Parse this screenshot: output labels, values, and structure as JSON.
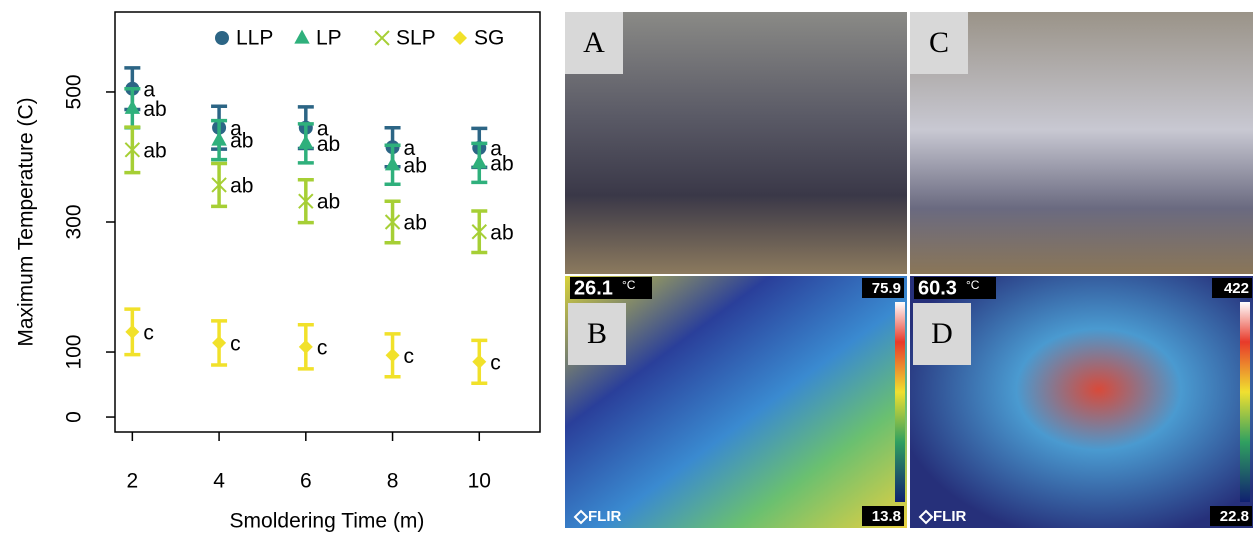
{
  "chart_data": {
    "type": "errorbar",
    "x_label": "Smoldering Time (m)",
    "y_label": "Maximum Temperature (C)",
    "x": [
      2,
      4,
      6,
      8,
      10
    ],
    "xlim": [
      1.6,
      11.4
    ],
    "xticks": [
      2,
      4,
      6,
      8,
      10
    ],
    "ylim": [
      -23,
      623
    ],
    "yticks": [
      0,
      100,
      300,
      500
    ],
    "legend": "top-right",
    "series": [
      {
        "name": "LLP",
        "color": "#2c6585",
        "marker": "circle",
        "values": [
          505,
          445,
          445,
          415,
          414
        ],
        "errors": [
          32,
          33,
          32,
          30,
          30
        ],
        "labels": [
          "a",
          "a",
          "a",
          "a",
          "a"
        ]
      },
      {
        "name": "LP",
        "color": "#2fb07c",
        "marker": "triangle",
        "values": [
          475,
          426,
          421,
          388,
          391
        ],
        "errors": [
          30,
          30,
          30,
          30,
          30
        ],
        "labels": [
          "ab",
          "ab",
          "ab",
          "ab",
          "ab"
        ]
      },
      {
        "name": "SLP",
        "color": "#a6cf35",
        "marker": "x",
        "values": [
          411,
          357,
          332,
          300,
          285
        ],
        "errors": [
          35,
          33,
          33,
          32,
          32
        ],
        "labels": [
          "ab",
          "ab",
          "ab",
          "ab",
          "ab"
        ]
      },
      {
        "name": "SG",
        "color": "#f1e12a",
        "marker": "diamond",
        "values": [
          131,
          114,
          108,
          95,
          85
        ],
        "errors": [
          35,
          34,
          34,
          33,
          33
        ],
        "labels": [
          "c",
          "c",
          "c",
          "c",
          "c"
        ]
      }
    ]
  },
  "panels": [
    {
      "label": "A"
    },
    {
      "label": "C"
    },
    {
      "label": "B",
      "spot": 26.1,
      "unit": "°C",
      "max": 75.9,
      "min": 13.8,
      "brand": "FLIR"
    },
    {
      "label": "D",
      "spot": 60.3,
      "unit": "°C",
      "max": 422,
      "min": 22.8,
      "brand": "FLIR"
    }
  ]
}
